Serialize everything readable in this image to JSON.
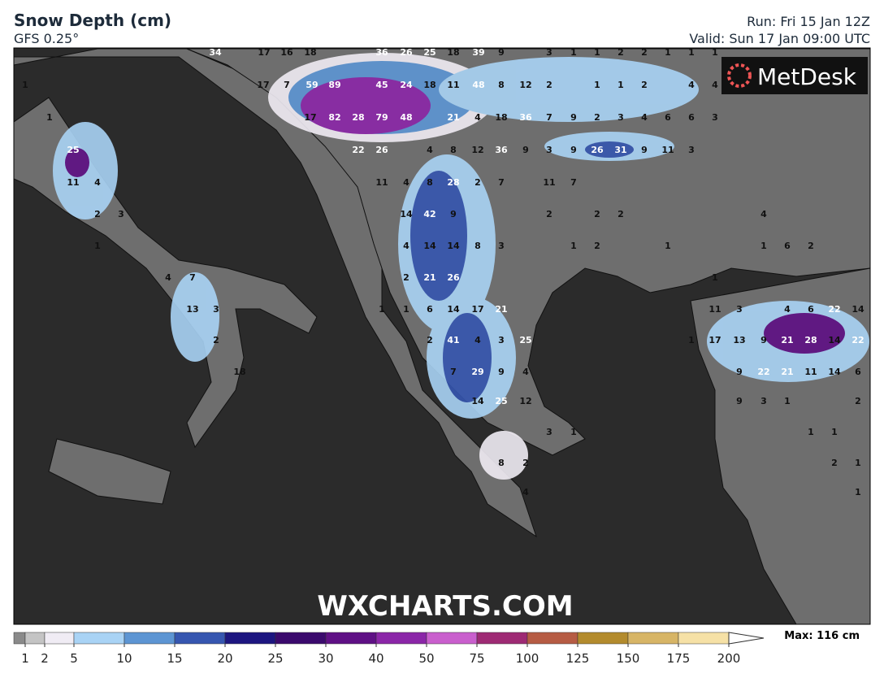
{
  "header": {
    "title": "Snow Depth (cm)",
    "subtitle": "GFS 0.25°",
    "run": "Run: Fri 15 Jan 12Z",
    "valid": "Valid: Sun 17 Jan 09:00 UTC"
  },
  "logo": "MetDesk",
  "watermark": "WXCHARTS.COM",
  "map": {
    "rows": [
      [
        34,
        17,
        16,
        18,
        36,
        26,
        25,
        18,
        39,
        9,
        3,
        1,
        1,
        2,
        2,
        1,
        1,
        1
      ],
      [
        1,
        17,
        7,
        59,
        89,
        45,
        24,
        18,
        11,
        48,
        8,
        12,
        2,
        1,
        1,
        2,
        4,
        4
      ],
      [
        1,
        17,
        82,
        28,
        79,
        48,
        21,
        4,
        18,
        36,
        7,
        9,
        2,
        3,
        4,
        6,
        6,
        3
      ],
      [
        25,
        22,
        26,
        4,
        8,
        12,
        36,
        9,
        3,
        9,
        26,
        31,
        9,
        11,
        3
      ],
      [
        11,
        4,
        11,
        4,
        8,
        28,
        2,
        7,
        11,
        7
      ],
      [
        2,
        3,
        14,
        42,
        9,
        2,
        2,
        2,
        4
      ],
      [
        1,
        4,
        14,
        14,
        8,
        3,
        1,
        2,
        1,
        1,
        6,
        2
      ],
      [
        4,
        7,
        2,
        21,
        26,
        1
      ],
      [
        13,
        3,
        1,
        1,
        6,
        14,
        17,
        21,
        11,
        3,
        4,
        6,
        22,
        14
      ],
      [
        2,
        2,
        41,
        4,
        3,
        25,
        1,
        17,
        13,
        9,
        21,
        28,
        14,
        22
      ],
      [
        18,
        7,
        29,
        9,
        4,
        9,
        22,
        21,
        11,
        14,
        6
      ],
      [
        14,
        25,
        12,
        9,
        3,
        1,
        2
      ],
      [
        3,
        1,
        1,
        1
      ],
      [
        8,
        2,
        2,
        1
      ],
      [
        4,
        1
      ]
    ]
  },
  "legend": {
    "ticks": [
      1,
      2,
      5,
      10,
      15,
      20,
      25,
      30,
      40,
      50,
      75,
      100,
      125,
      150,
      175,
      200
    ],
    "colors": [
      "#8a8a8a",
      "#c4c4c4",
      "#f0ecf4",
      "#a9d3f5",
      "#5d95d3",
      "#3656b0",
      "#1d1680",
      "#3b0a6d",
      "#5f1085",
      "#8b26a8",
      "#c95fcd",
      "#9e2a74",
      "#b65c44",
      "#b38b2d",
      "#d7b566",
      "#f6e1a6"
    ],
    "max": "Max: 116 cm"
  }
}
